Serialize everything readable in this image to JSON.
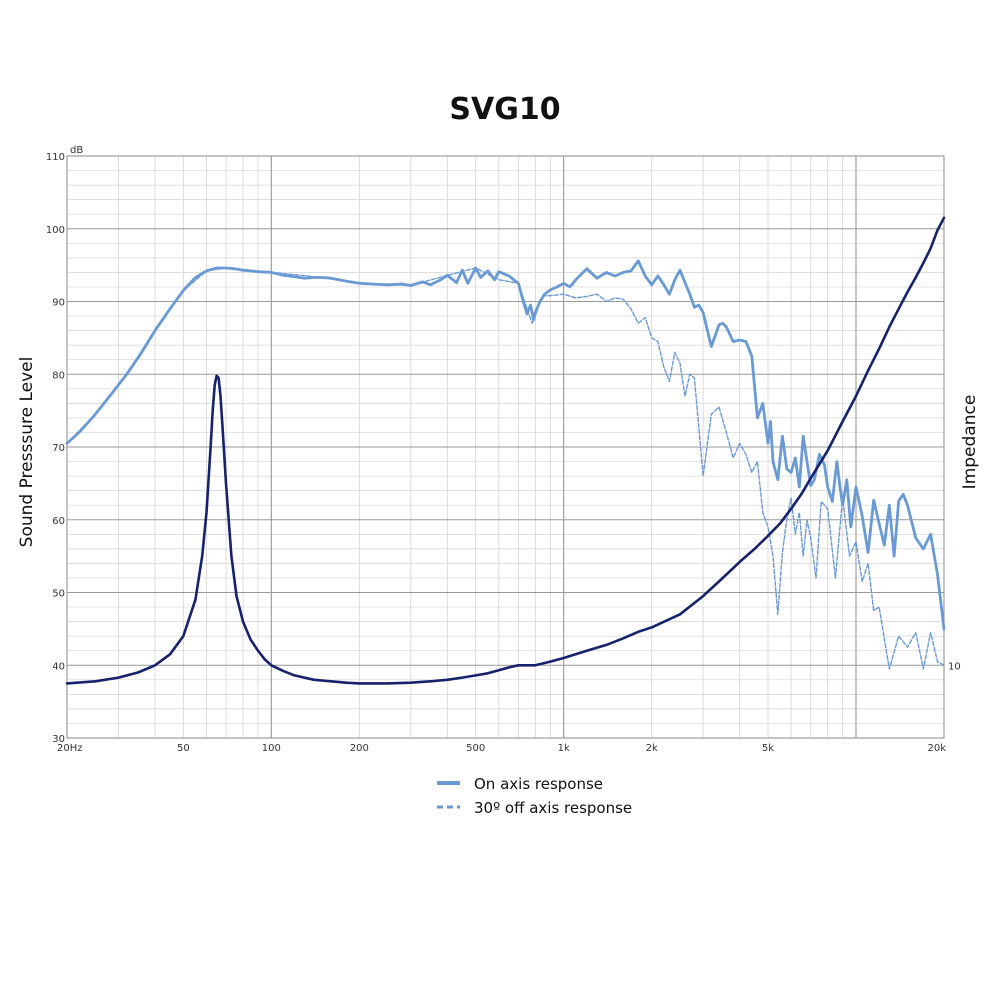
{
  "chart_data": {
    "type": "line",
    "title": "SVG10",
    "ylabel_left": "Sound Presssure Level",
    "ylabel_right": "Impedance",
    "y_unit": "dB",
    "xscale": "log",
    "xlim": [
      20,
      20000
    ],
    "ylim": [
      30,
      110
    ],
    "x_tick_labels": [
      {
        "value": 20,
        "label": "20Hz"
      },
      {
        "value": 50,
        "label": "50"
      },
      {
        "value": 100,
        "label": "100"
      },
      {
        "value": 200,
        "label": "200"
      },
      {
        "value": 500,
        "label": "500"
      },
      {
        "value": 1000,
        "label": "1k"
      },
      {
        "value": 2000,
        "label": "2k"
      },
      {
        "value": 5000,
        "label": "5k"
      },
      {
        "value": 20000,
        "label": "20k"
      }
    ],
    "y_tick_labels": [
      {
        "value": 110,
        "label": "110"
      },
      {
        "value": 100,
        "label": "100"
      },
      {
        "value": 90,
        "label": "90"
      },
      {
        "value": 80,
        "label": "80"
      },
      {
        "value": 70,
        "label": "70"
      },
      {
        "value": 60,
        "label": "60"
      },
      {
        "value": 50,
        "label": "50"
      },
      {
        "value": 40,
        "label": "40"
      },
      {
        "value": 30,
        "label": "30"
      }
    ],
    "right_axis_tick": {
      "at_left_axis_value": 40,
      "label": "10"
    },
    "grid": true,
    "legend_position": "bottom-center",
    "series": [
      {
        "name": "On axis response",
        "style": "solid",
        "color": "#6a9ad6",
        "x": [
          20,
          22,
          25,
          28,
          32,
          36,
          40,
          45,
          50,
          55,
          60,
          65,
          70,
          75,
          80,
          85,
          90,
          100,
          110,
          120,
          130,
          140,
          150,
          160,
          180,
          200,
          220,
          250,
          280,
          300,
          330,
          350,
          380,
          400,
          430,
          450,
          470,
          500,
          520,
          550,
          580,
          600,
          650,
          700,
          730,
          750,
          770,
          790,
          800,
          830,
          860,
          900,
          950,
          1000,
          1050,
          1100,
          1200,
          1300,
          1400,
          1500,
          1600,
          1700,
          1800,
          1900,
          2000,
          2100,
          2200,
          2300,
          2400,
          2500,
          2600,
          2700,
          2800,
          2900,
          3000,
          3200,
          3400,
          3500,
          3600,
          3800,
          4000,
          4200,
          4400,
          4600,
          4800,
          5000,
          5100,
          5200,
          5400,
          5600,
          5800,
          6000,
          6200,
          6400,
          6600,
          6800,
          7000,
          7200,
          7500,
          7800,
          8000,
          8300,
          8600,
          8800,
          9000,
          9300,
          9600,
          10000,
          10500,
          11000,
          11500,
          12000,
          12500,
          13000,
          13500,
          14000,
          14500,
          15000,
          16000,
          17000,
          18000,
          19000,
          20000
        ],
        "y": [
          70.5,
          72.0,
          74.5,
          77.0,
          80.0,
          83.0,
          86.0,
          89.0,
          91.5,
          93.3,
          94.2,
          94.6,
          94.6,
          94.5,
          94.3,
          94.2,
          94.1,
          94.0,
          93.6,
          93.4,
          93.2,
          93.3,
          93.3,
          93.2,
          92.8,
          92.5,
          92.4,
          92.3,
          92.4,
          92.2,
          92.7,
          92.3,
          93.0,
          93.6,
          92.6,
          94.3,
          92.5,
          94.6,
          93.3,
          94.2,
          93.0,
          94.1,
          93.5,
          92.5,
          89.8,
          88.3,
          89.5,
          87.5,
          88.5,
          90.0,
          91.0,
          91.6,
          92.0,
          92.5,
          92.0,
          93.0,
          94.5,
          93.2,
          94.0,
          93.5,
          94.0,
          94.2,
          95.6,
          93.5,
          92.3,
          93.5,
          92.3,
          91.0,
          93.0,
          94.3,
          92.6,
          91.0,
          89.2,
          89.5,
          88.5,
          83.8,
          86.8,
          87.0,
          86.5,
          84.5,
          84.7,
          84.5,
          82.5,
          74.0,
          76.0,
          70.5,
          73.5,
          68.0,
          65.5,
          71.5,
          67.0,
          66.5,
          68.5,
          64.5,
          71.5,
          68.0,
          64.7,
          65.5,
          69.0,
          67.5,
          64.5,
          62.5,
          68.0,
          64.7,
          62.0,
          65.5,
          59.0,
          64.5,
          60.5,
          55.5,
          62.7,
          59.5,
          56.5,
          62.0,
          55.0,
          62.6,
          63.5,
          62.0,
          57.5,
          56.0,
          58.0,
          52.5,
          45.0
        ]
      },
      {
        "name": "30° off axis response",
        "style": "dashed",
        "color": "#6a9ad6",
        "x": [
          20,
          25,
          32,
          40,
          50,
          60,
          70,
          80,
          100,
          150,
          200,
          300,
          400,
          500,
          600,
          700,
          750,
          780,
          800,
          830,
          860,
          900,
          1000,
          1100,
          1200,
          1300,
          1400,
          1500,
          1600,
          1700,
          1800,
          1900,
          2000,
          2100,
          2200,
          2300,
          2400,
          2500,
          2600,
          2700,
          2800,
          3000,
          3200,
          3400,
          3600,
          3800,
          4000,
          4200,
          4400,
          4600,
          4800,
          5000,
          5200,
          5400,
          5600,
          5800,
          6000,
          6200,
          6400,
          6600,
          6800,
          7000,
          7300,
          7600,
          8000,
          8500,
          9000,
          9500,
          10000,
          10500,
          11000,
          11500,
          12000,
          13000,
          14000,
          15000,
          16000,
          17000,
          18000,
          19000,
          20000
        ],
        "y": [
          70.5,
          74.5,
          80.0,
          86.0,
          91.5,
          94.2,
          94.6,
          94.3,
          94.0,
          93.3,
          92.5,
          92.2,
          93.6,
          94.6,
          93.0,
          92.5,
          89.0,
          87.0,
          88.0,
          90.0,
          90.8,
          90.8,
          91.0,
          90.5,
          90.7,
          91.0,
          90.0,
          90.5,
          90.3,
          89.0,
          87.0,
          87.8,
          85.0,
          84.5,
          81.0,
          79.0,
          83.0,
          81.5,
          77.0,
          80.0,
          79.5,
          66.0,
          74.5,
          75.5,
          72.0,
          68.5,
          70.5,
          69.0,
          66.5,
          68.0,
          61.0,
          59.0,
          55.0,
          47.0,
          55.5,
          60.0,
          63.0,
          58.0,
          61.0,
          55.0,
          60.0,
          57.5,
          52.0,
          62.5,
          61.5,
          52.0,
          63.0,
          55.0,
          57.0,
          51.5,
          54.0,
          47.5,
          48.0,
          39.5,
          44.0,
          42.5,
          44.5,
          39.5,
          44.5,
          40.5,
          40.0
        ]
      },
      {
        "name": "",
        "style": "solid",
        "color": "#16226b",
        "x": [
          20,
          25,
          30,
          35,
          40,
          45,
          50,
          55,
          58,
          60,
          62,
          63,
          64,
          65,
          66,
          67,
          68,
          70,
          73,
          76,
          80,
          85,
          90,
          95,
          100,
          110,
          120,
          140,
          160,
          180,
          200,
          250,
          300,
          350,
          400,
          450,
          500,
          550,
          600,
          650,
          700,
          800,
          900,
          1000,
          1200,
          1400,
          1600,
          1800,
          2000,
          2500,
          3000,
          3500,
          4000,
          4500,
          5000,
          5500,
          6000,
          6500,
          7000,
          8000,
          9000,
          10000,
          11000,
          12000,
          13000,
          14000,
          15000,
          16000,
          17000,
          18000,
          19000,
          20000
        ],
        "y": [
          37.5,
          37.8,
          38.3,
          39.0,
          40.0,
          41.5,
          44.0,
          49.0,
          55.0,
          61.0,
          70.0,
          75.0,
          78.5,
          79.8,
          79.5,
          77.0,
          73.0,
          65.0,
          55.0,
          49.5,
          46.0,
          43.5,
          42.0,
          40.8,
          40.0,
          39.2,
          38.6,
          38.0,
          37.8,
          37.6,
          37.5,
          37.5,
          37.6,
          37.8,
          38.0,
          38.3,
          38.6,
          38.9,
          39.3,
          39.7,
          40.0,
          40.0,
          40.5,
          41.0,
          42.0,
          42.8,
          43.7,
          44.6,
          45.2,
          47.0,
          49.5,
          52.0,
          54.2,
          56.0,
          57.8,
          59.5,
          61.5,
          63.5,
          65.7,
          69.5,
          73.5,
          77.0,
          80.5,
          83.5,
          86.5,
          89.0,
          91.3,
          93.3,
          95.3,
          97.3,
          99.8,
          101.5
        ]
      }
    ]
  },
  "legend": [
    {
      "label": "On axis response",
      "style": "solid",
      "color": "#6a9ad6"
    },
    {
      "label": "30º off axis response",
      "style": "dashed",
      "color": "#6a9ad6"
    }
  ],
  "colors": {
    "on_axis": "#6a9ad6",
    "off_axis": "#6a9ad6",
    "impedance": "#16226b",
    "grid_major": "#9a9a9a",
    "grid_minor": "#d4d4d4"
  }
}
